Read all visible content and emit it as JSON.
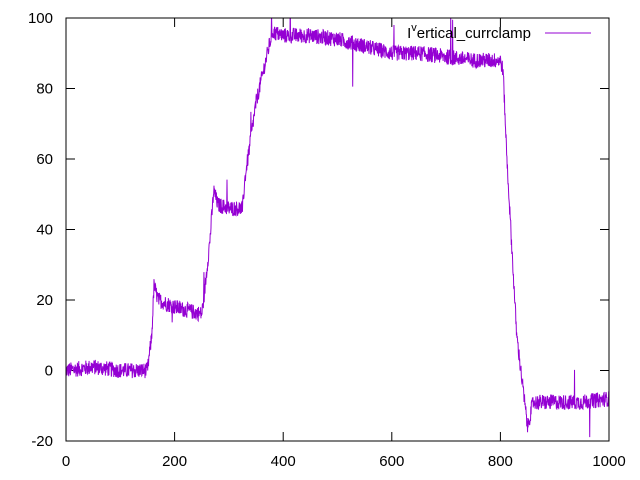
{
  "chart_data": {
    "type": "line",
    "title": "",
    "xlabel": "",
    "ylabel": "",
    "xlim": [
      0,
      1000
    ],
    "ylim": [
      -20,
      100
    ],
    "x_ticks": [
      0,
      200,
      400,
      600,
      800,
      1000
    ],
    "y_ticks": [
      -20,
      0,
      20,
      40,
      60,
      80,
      100
    ],
    "grid": false,
    "legend_position": "top-right",
    "series": [
      {
        "name": "I^vertical_currclamp",
        "legend_prefix": "I",
        "legend_sup": "v",
        "legend_rest": "ertical_currclamp",
        "color": "#9400d3",
        "noise_note": "dense high-frequency noise of roughly ±2 units around the shape below",
        "x": [
          0,
          50,
          100,
          150,
          158,
          162,
          170,
          200,
          250,
          255,
          265,
          272,
          280,
          300,
          325,
          330,
          350,
          380,
          400,
          450,
          500,
          550,
          600,
          650,
          700,
          750,
          800,
          805,
          812,
          830,
          850,
          853,
          860,
          870,
          900,
          950,
          1000
        ],
        "y": [
          0,
          1,
          0,
          0,
          10,
          24,
          20,
          18,
          16,
          22,
          37,
          51,
          47,
          46,
          46,
          55,
          76,
          96,
          95,
          95,
          94,
          92,
          90,
          90,
          89,
          88,
          88,
          85,
          60,
          10,
          -16,
          -14,
          -9,
          -9,
          -9,
          -9,
          -8
        ]
      }
    ]
  }
}
